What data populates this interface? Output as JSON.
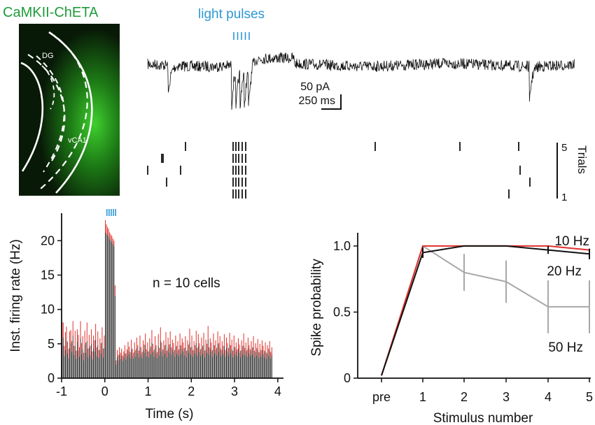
{
  "colors": {
    "green_label": "#1f9a3a",
    "blue_pulses": "#2d98d4",
    "red_err": "#e0302b",
    "black": "#111111",
    "gray": "#a8a8a8"
  },
  "panel_a": {
    "title": "CaMKII-ChETA",
    "label_dg": "DG",
    "label_vca1": "vCA1"
  },
  "trace": {
    "light_label": "light pulses",
    "scale_pa": "50 pA",
    "scale_ms": "250 ms",
    "n_pulses": 5
  },
  "raster": {
    "ylabel": "Trials",
    "tick_top": "5",
    "tick_bottom": "1"
  },
  "chart_data": [
    {
      "type": "bar",
      "xlabel": "Time (s)",
      "ylabel": "Inst. firing rate (Hz)",
      "annotation": "n = 10 cells",
      "xlim": [
        -1,
        4.1
      ],
      "ylim": [
        0,
        24
      ],
      "xticks": [
        "-1",
        "0",
        "1",
        "2",
        "3",
        "4"
      ],
      "yticks": [
        "0",
        "5",
        "10",
        "15",
        "20"
      ],
      "bin_width_s": 0.025,
      "pulse_times_s": [
        0,
        0.05,
        0.1,
        0.15,
        0.2
      ],
      "bins_start": -1,
      "values": [
        4.8,
        5.9,
        3.2,
        4.1,
        5.5,
        3.6,
        2.9,
        4.4,
        5.1,
        3.8,
        6.2,
        3.4,
        4.7,
        2.8,
        5.3,
        4.0,
        3.1,
        5.8,
        3.5,
        4.2,
        2.6,
        4.9,
        3.7,
        5.4,
        3.0,
        4.5,
        3.3,
        5.0,
        2.7,
        4.3,
        3.9,
        5.6,
        3.2,
        4.8,
        2.9,
        4.1,
        3.6,
        5.2,
        3.0,
        4.4,
        21.2,
        21.0,
        20.8,
        20.6,
        20.2,
        20.0,
        19.8,
        19.5,
        19.2,
        12.0,
        2.0,
        3.1,
        2.6,
        3.4,
        2.8,
        3.3,
        2.5,
        3.0,
        3.6,
        2.7,
        3.2,
        4.0,
        3.5,
        2.9,
        4.2,
        3.3,
        2.8,
        3.9,
        3.1,
        4.4,
        3.6,
        3.0,
        4.6,
        3.4,
        2.9,
        4.1,
        3.7,
        4.8,
        3.2,
        3.9,
        3.0,
        4.3,
        3.5,
        5.2,
        3.8,
        3.1,
        4.5,
        3.6,
        2.9,
        4.7,
        3.3,
        5.5,
        3.9,
        3.2,
        4.1,
        3.6,
        4.9,
        3.0,
        4.4,
        3.7,
        5.0,
        3.4,
        4.2,
        3.8,
        3.1,
        4.6,
        3.5,
        4.0,
        3.2,
        4.8,
        3.6,
        4.3,
        3.9,
        3.3,
        4.5,
        3.0,
        4.1,
        3.7,
        5.3,
        3.4,
        4.6,
        3.1,
        4.0,
        3.6,
        5.1,
        3.3,
        4.7,
        3.8,
        3.2,
        4.4,
        3.5,
        4.9,
        3.0,
        4.2,
        3.7,
        5.6,
        3.4,
        4.3,
        3.9,
        3.1,
        4.8,
        3.6,
        4.1,
        3.3,
        5.0,
        3.8,
        4.5,
        3.2,
        4.0,
        3.5,
        4.7,
        3.1,
        4.4,
        3.8,
        3.3,
        4.9,
        3.6,
        4.2,
        3.0,
        4.6,
        3.4,
        3.9,
        3.2,
        4.3,
        3.7,
        3.0,
        4.1,
        3.5,
        4.8,
        3.3,
        3.9,
        3.1,
        4.4,
        3.6,
        3.2,
        4.0,
        3.4,
        4.5,
        3.0,
        3.8,
        3.3,
        4.2,
        2.9,
        3.7,
        3.1,
        4.1,
        3.5,
        3.0,
        3.9,
        2.8,
        3.6,
        3.2,
        4.0,
        2.9,
        3.4
      ],
      "errors": [
        3.4,
        2.2,
        1.5,
        2.6,
        2.0,
        1.7,
        1.4,
        2.4,
        1.9,
        1.6,
        2.1,
        1.3,
        2.2,
        1.2,
        1.8,
        2.3,
        1.4,
        2.5,
        1.6,
        1.9,
        1.1,
        2.0,
        1.5,
        2.7,
        1.3,
        1.8,
        1.4,
        2.1,
        1.2,
        1.9,
        1.6,
        2.3,
        1.3,
        2.0,
        1.2,
        1.7,
        1.5,
        2.2,
        1.3,
        1.8,
        1.8,
        1.4,
        1.2,
        1.1,
        1.0,
        0.9,
        0.9,
        0.8,
        0.8,
        1.5,
        0.6,
        1.0,
        0.8,
        1.1,
        0.9,
        1.0,
        0.8,
        0.9,
        1.2,
        0.9,
        1.0,
        1.3,
        1.1,
        0.9,
        1.4,
        1.0,
        0.9,
        1.3,
        1.0,
        1.5,
        1.2,
        1.0,
        1.6,
        1.1,
        0.9,
        1.4,
        1.2,
        1.7,
        1.0,
        1.3,
        0.9,
        1.5,
        1.1,
        1.8,
        1.2,
        1.0,
        1.6,
        1.2,
        0.9,
        1.7,
        1.1,
        1.9,
        1.3,
        1.0,
        1.4,
        1.2,
        1.8,
        1.0,
        1.5,
        1.2,
        1.8,
        1.1,
        1.4,
        1.3,
        1.0,
        1.6,
        1.2,
        1.4,
        1.0,
        1.7,
        1.2,
        1.5,
        1.3,
        1.1,
        1.6,
        1.0,
        1.4,
        1.2,
        1.9,
        1.1,
        1.6,
        1.0,
        1.4,
        1.2,
        1.8,
        1.1,
        1.7,
        1.3,
        1.0,
        1.5,
        1.2,
        1.7,
        1.0,
        1.4,
        1.3,
        2.0,
        1.1,
        1.5,
        1.3,
        1.0,
        1.7,
        1.2,
        1.4,
        1.1,
        1.8,
        1.3,
        1.6,
        1.0,
        1.4,
        1.2,
        1.7,
        1.0,
        1.5,
        1.3,
        1.1,
        1.7,
        1.2,
        1.4,
        1.0,
        1.6,
        1.1,
        1.3,
        1.0,
        1.5,
        1.2,
        1.0,
        1.4,
        1.2,
        1.7,
        1.1,
        1.3,
        1.0,
        1.5,
        1.2,
        1.0,
        1.4,
        1.1,
        1.6,
        1.0,
        1.3,
        1.1,
        1.5,
        0.9,
        1.3,
        1.0,
        1.4,
        1.2,
        1.0,
        1.3,
        0.9,
        1.2,
        1.1,
        1.4,
        0.9,
        1.1
      ]
    },
    {
      "type": "line",
      "xlabel": "Stimulus number",
      "ylabel": "Spike probability",
      "categories": [
        "pre",
        "1",
        "2",
        "3",
        "4",
        "5"
      ],
      "yticks": [
        "0",
        "0.5",
        "1.0"
      ],
      "ylim": [
        0,
        1.1
      ],
      "series": [
        {
          "name": "10 Hz",
          "color": "#e0302b",
          "values": [
            0.02,
            1.0,
            1.0,
            1.0,
            1.0,
            0.97
          ],
          "errors": [
            0,
            0,
            0,
            0,
            0,
            0
          ]
        },
        {
          "name": "20 Hz",
          "color": "#111111",
          "values": [
            0.02,
            0.95,
            1.0,
            1.0,
            0.97,
            0.94
          ],
          "errors": [
            0,
            0.04,
            0,
            0,
            0.03,
            0.04
          ]
        },
        {
          "name": "50 Hz",
          "color": "#a8a8a8",
          "values": [
            0.02,
            1.0,
            0.8,
            0.73,
            0.54,
            0.54
          ],
          "errors": [
            0,
            0,
            0.14,
            0.16,
            0.2,
            0.2
          ]
        }
      ]
    }
  ]
}
